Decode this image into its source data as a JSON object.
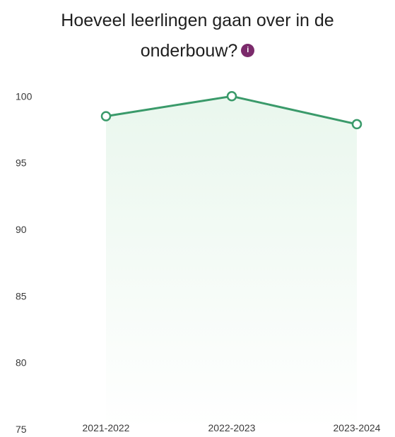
{
  "chart_data": {
    "type": "line",
    "title_line1": "Hoeveel leerlingen gaan over in de",
    "title_line2": "onderbouw?",
    "info_icon_glyph": "i",
    "categories": [
      "2021-2022",
      "2022-2023",
      "2023-2024"
    ],
    "series": [
      {
        "values": [
          98.5,
          100.0,
          97.9
        ],
        "color": "#3a9a6a",
        "fill_color": "#d8f0df"
      }
    ],
    "y_ticks": [
      75,
      80,
      85,
      90,
      95,
      100
    ],
    "ylim": [
      75,
      101.5
    ],
    "grid": false,
    "legend": "none"
  }
}
